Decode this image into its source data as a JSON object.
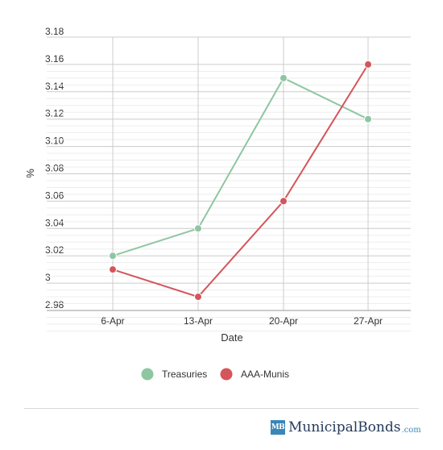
{
  "chart_data": {
    "type": "line",
    "categories": [
      "6-Apr",
      "13-Apr",
      "20-Apr",
      "27-Apr"
    ],
    "series": [
      {
        "name": "Treasuries",
        "values": [
          3.02,
          3.04,
          3.15,
          3.12
        ],
        "color": "#8ec6a2"
      },
      {
        "name": "AAA-Munis",
        "values": [
          3.01,
          2.99,
          3.06,
          3.16
        ],
        "color": "#d4555a"
      }
    ],
    "xlabel": "Date",
    "ylabel": "%",
    "ylim": [
      2.98,
      3.18
    ],
    "yticks": [
      "2.98",
      "3",
      "3.02",
      "3.04",
      "3.06",
      "3.08",
      "3.10",
      "3.12",
      "3.14",
      "3.16",
      "3.18"
    ],
    "grid": true,
    "legend_position": "bottom-center"
  },
  "branding": {
    "badge": "MB",
    "name": "MunicipalBonds",
    "tld": ".com"
  }
}
